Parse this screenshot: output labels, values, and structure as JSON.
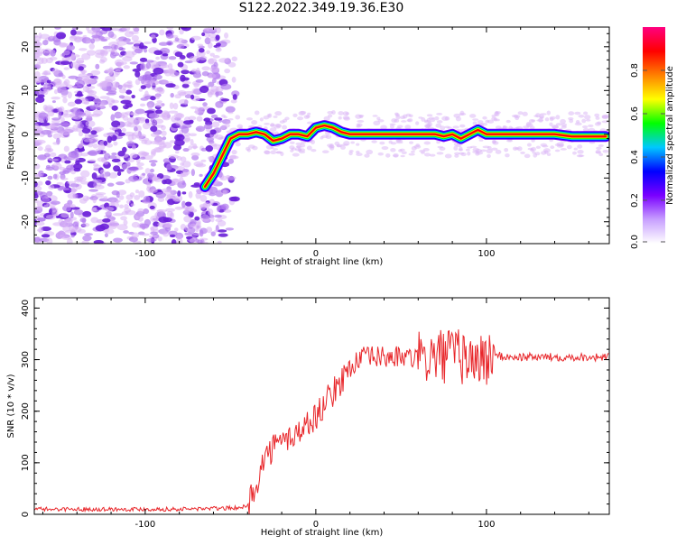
{
  "title": "S122.2022.349.19.36.E30",
  "colors": {
    "snr_line": "#e8262a",
    "scatter_faint": "#d9b3f5",
    "scatter_mid": "#b27cf0",
    "scatter_dark": "#6a1fd8"
  },
  "chart_data": [
    {
      "type": "heatmap",
      "xlabel": "Height of straight line (km)",
      "ylabel": "Frequency (Hz)",
      "xlim": [
        -165,
        172
      ],
      "ylim": [
        -25,
        24.5
      ],
      "x_ticks": [
        -100,
        0,
        100
      ],
      "x_tick_labels": [
        "-100",
        "0",
        "100"
      ],
      "y_ticks": [
        -20,
        -10,
        0,
        10,
        20
      ],
      "y_tick_labels": [
        "-20",
        "-10",
        "0",
        "10",
        "20"
      ],
      "noise_x_range": [
        -165,
        -53
      ],
      "tone_track": {
        "x": [
          -65,
          -60,
          -55,
          -50,
          -45,
          -40,
          -35,
          -30,
          -25,
          -20,
          -15,
          -10,
          -5,
          0,
          5,
          10,
          15,
          20,
          30,
          40,
          50,
          60,
          70,
          75,
          80,
          85,
          90,
          95,
          100,
          110,
          120,
          130,
          140,
          150,
          160,
          170
        ],
        "y": [
          -12,
          -9,
          -5,
          -1,
          0,
          0,
          0.5,
          0,
          -1.5,
          -1,
          0,
          0,
          -0.5,
          1.5,
          2,
          1.5,
          0.5,
          0,
          0,
          0,
          0,
          0,
          0,
          -0.5,
          0,
          -1,
          0,
          1,
          0,
          0,
          0,
          0,
          0,
          -0.5,
          -0.5,
          -0.5
        ]
      },
      "colorbar": {
        "label": "Normalized spectral amplitude",
        "range": [
          0,
          1
        ],
        "ticks": [
          0.0,
          0.2,
          0.4,
          0.6,
          0.8
        ],
        "tick_labels": [
          "0.0",
          "0.2",
          "0.4",
          "0.6",
          "0.8"
        ],
        "colormap": [
          "#ffffff",
          "#c8a0ff",
          "#7a00ff",
          "#0000ff",
          "#00c8ff",
          "#00ff00",
          "#ffff00",
          "#ff8000",
          "#ff0000",
          "#ff0080"
        ]
      }
    },
    {
      "type": "line",
      "xlabel": "Height of straight line (km)",
      "ylabel": "SNR (10 * v/v)",
      "xlim": [
        -165,
        172
      ],
      "ylim": [
        0,
        420
      ],
      "x_ticks": [
        -100,
        0,
        100
      ],
      "x_tick_labels": [
        "-100",
        "0",
        "100"
      ],
      "y_ticks": [
        0,
        100,
        200,
        300,
        400
      ],
      "y_tick_labels": [
        "0",
        "100",
        "200",
        "300",
        "400"
      ],
      "series": [
        {
          "x": [
            -165,
            -140,
            -110,
            -80,
            -50,
            -40,
            -35,
            -30,
            -25,
            -20,
            -15,
            -10,
            -5,
            0,
            5,
            10,
            15,
            20,
            25,
            30,
            40,
            50,
            60,
            70,
            80,
            90,
            100,
            105,
            110,
            120,
            140,
            160,
            172
          ],
          "y": [
            10,
            10,
            10,
            10,
            12,
            15,
            60,
            110,
            130,
            140,
            150,
            160,
            175,
            190,
            215,
            235,
            260,
            285,
            300,
            305,
            305,
            305,
            300,
            305,
            310,
            300,
            300,
            310,
            305,
            305,
            305,
            305,
            305
          ]
        }
      ]
    }
  ]
}
